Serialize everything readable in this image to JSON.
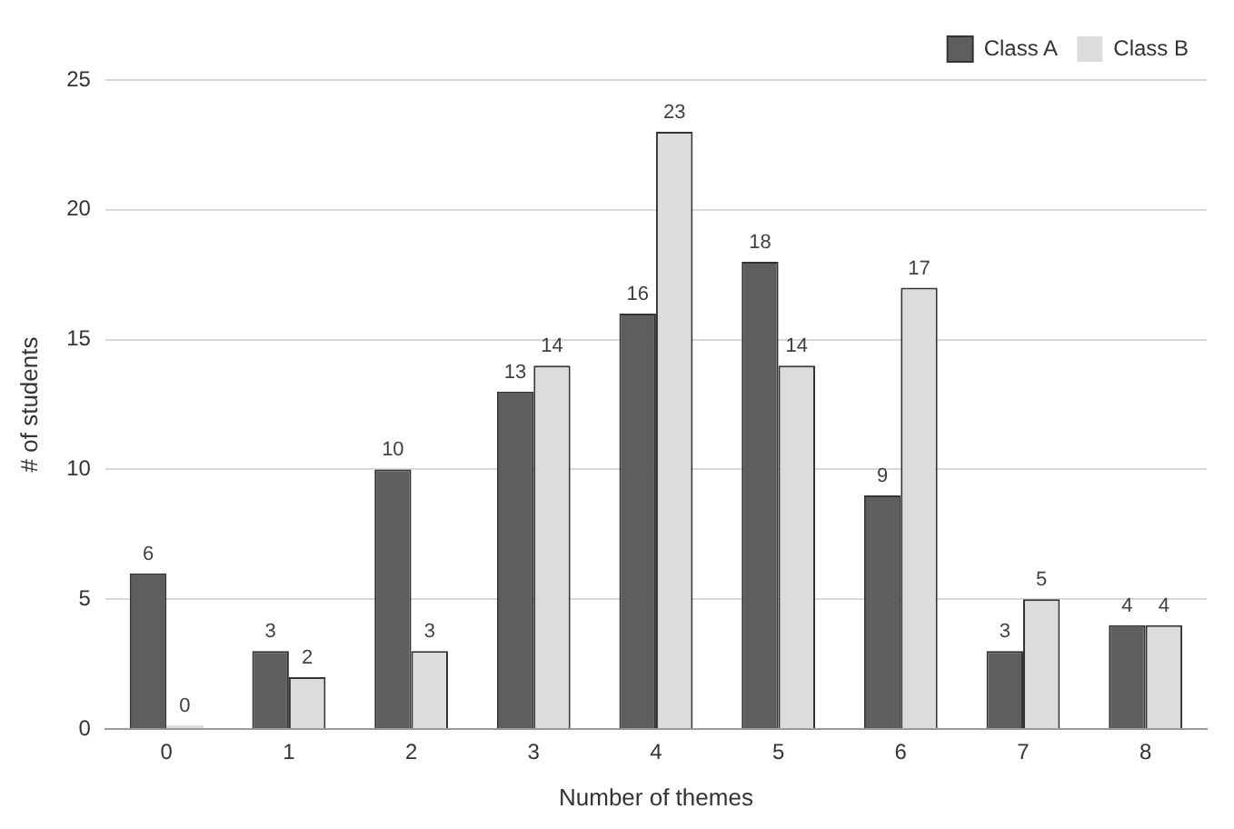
{
  "chart_data": {
    "type": "bar",
    "xlabel": "Number of themes",
    "ylabel": "# of students",
    "categories": [
      "0",
      "1",
      "2",
      "3",
      "4",
      "5",
      "6",
      "7",
      "8"
    ],
    "series": [
      {
        "name": "Class A",
        "color": "#5e5e5e",
        "values": [
          6,
          3,
          10,
          13,
          16,
          18,
          9,
          3,
          4
        ]
      },
      {
        "name": "Class B",
        "color": "#dcdcdc",
        "values": [
          0,
          2,
          3,
          14,
          23,
          14,
          17,
          5,
          4
        ]
      }
    ],
    "ylim": [
      0,
      25
    ],
    "yticks": [
      0,
      5,
      10,
      15,
      20,
      25
    ],
    "grid": "y",
    "legend": "top right",
    "data_labels": true
  }
}
